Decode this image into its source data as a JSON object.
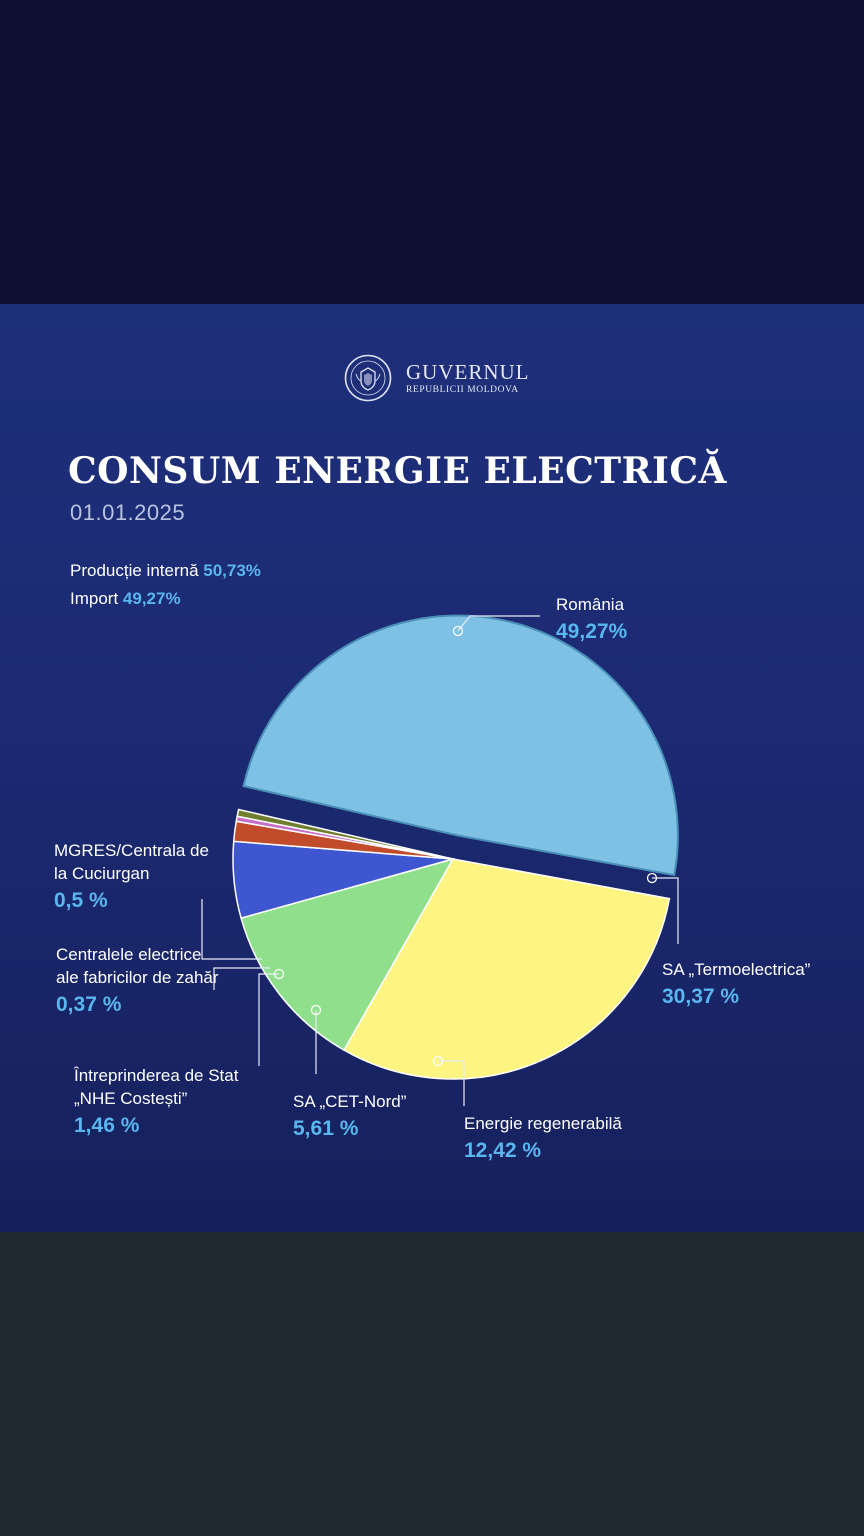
{
  "header": {
    "logo_main": "GUVERNUL",
    "logo_sub": "REPUBLICII MOLDOVA",
    "seal_icon": "moldova-coat-of-arms-seal"
  },
  "title": "CONSUM ENERGIE ELECTRICĂ",
  "date": "01.01.2025",
  "summary": {
    "internal_label": "Producție internă",
    "internal_value": "50,73%",
    "import_label": "Import",
    "import_value": "49,27%"
  },
  "chart_data": {
    "type": "pie",
    "title": "CONSUM ENERGIE ELECTRICĂ",
    "slices": [
      {
        "label": "România",
        "value": 49.27,
        "display": "49,27%",
        "color": "#7fc1e4",
        "exploded": true
      },
      {
        "label": "SA „Termoelectrica”",
        "value": 30.37,
        "display": "30,37 %",
        "color": "#fdf482"
      },
      {
        "label": "Energie regenerabilă",
        "value": 12.42,
        "display": "12,42 %",
        "color": "#90df8d"
      },
      {
        "label": "SA „CET-Nord”",
        "value": 5.61,
        "display": "5,61 %",
        "color": "#3f56d1"
      },
      {
        "label": "Întreprinderea de Stat „NHE Costești”",
        "value": 1.46,
        "display": "1,46 %",
        "color": "#c24b2c"
      },
      {
        "label": "Centralele electrice ale fabricilor de zahăr",
        "value": 0.37,
        "display": "0,37 %",
        "color": "#c56fc8"
      },
      {
        "label": "MGRES/Centrala de la Cuciurgan",
        "value": 0.5,
        "display": "0,5 %",
        "color": "#6f7e2e"
      }
    ],
    "legend": "none"
  }
}
